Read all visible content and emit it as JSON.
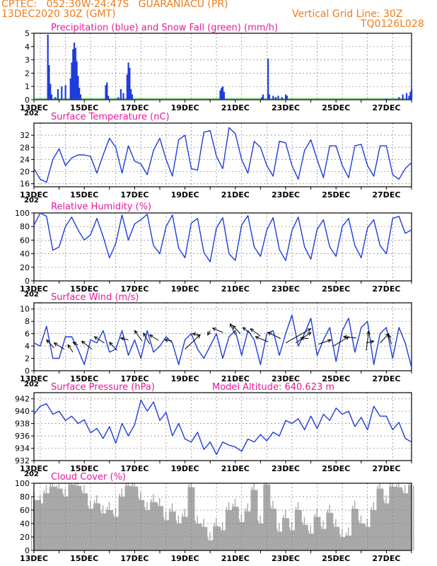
{
  "header": {
    "station_line": "CPTEC:   052:30W-24:47S   GUARANIACU (PR)",
    "date_line": "13DEC2020 30Z (GMT)",
    "grid_label": "Vertical Grid Line: 30Z",
    "code": "TQ0126L028"
  },
  "colors": {
    "header": "#ee7c1d",
    "title": "#e8189b",
    "series": "#1f3ddc",
    "snow": "#1aa21a",
    "cloud": "#a8a8a8",
    "axis": "#000000",
    "grid": "#808080"
  },
  "chart_data": [
    {
      "id": "precip",
      "type": "bar",
      "title": "Precipitation (blue) and Snow Fall (green) (mm/h)",
      "ylim": [
        0,
        5
      ],
      "yticks": [
        "0",
        "1",
        "2",
        "3",
        "4",
        "5"
      ],
      "xticks": [
        "13DEC",
        "15DEC",
        "17DEC",
        "19DEC",
        "21DEC",
        "23DEC",
        "25DEC",
        "27DEC"
      ],
      "x_overlap_label": "202",
      "precip_bars": [
        [
          13.55,
          4.9
        ],
        [
          13.6,
          2.6
        ],
        [
          13.65,
          1.2
        ],
        [
          13.7,
          0.4
        ],
        [
          13.85,
          0.2
        ],
        [
          13.95,
          0.8
        ],
        [
          14.1,
          1.0
        ],
        [
          14.25,
          1.1
        ],
        [
          14.45,
          1.6
        ],
        [
          14.5,
          2.8
        ],
        [
          14.55,
          3.8
        ],
        [
          14.6,
          4.3
        ],
        [
          14.65,
          3.9
        ],
        [
          14.7,
          2.9
        ],
        [
          14.75,
          1.8
        ],
        [
          14.8,
          0.9
        ],
        [
          14.85,
          0.4
        ],
        [
          15.85,
          1.1
        ],
        [
          15.9,
          1.3
        ],
        [
          15.95,
          0.3
        ],
        [
          16.35,
          0.2
        ],
        [
          16.45,
          0.8
        ],
        [
          16.55,
          0.5
        ],
        [
          16.7,
          1.9
        ],
        [
          16.75,
          2.8
        ],
        [
          16.8,
          2.4
        ],
        [
          16.85,
          0.8
        ],
        [
          16.9,
          0.4
        ],
        [
          20.4,
          0.7
        ],
        [
          20.45,
          0.9
        ],
        [
          20.5,
          1.0
        ],
        [
          20.55,
          0.6
        ],
        [
          22.05,
          0.2
        ],
        [
          22.1,
          0.4
        ],
        [
          22.3,
          3.1
        ],
        [
          22.35,
          0.4
        ],
        [
          22.5,
          0.3
        ],
        [
          22.6,
          0.2
        ],
        [
          22.7,
          0.3
        ],
        [
          22.85,
          0.2
        ],
        [
          23.0,
          0.4
        ],
        [
          23.05,
          0.3
        ],
        [
          27.0,
          0.1
        ],
        [
          27.5,
          0.2
        ],
        [
          27.65,
          0.4
        ],
        [
          27.8,
          0.5
        ],
        [
          27.9,
          0.3
        ],
        [
          27.95,
          0.6
        ],
        [
          28.0,
          0.8
        ]
      ],
      "snow_line": 0.05
    },
    {
      "id": "temp",
      "type": "line",
      "title": "Surface Temperature (nC)",
      "ylim": [
        15,
        36
      ],
      "yticks": [
        "16",
        "20",
        "24",
        "28",
        "32"
      ],
      "xticks": [
        "13DEC",
        "15DEC",
        "17DEC",
        "19DEC",
        "21DEC",
        "23DEC",
        "25DEC",
        "27DEC"
      ],
      "x_overlap_label": "202",
      "x": [
        13.0,
        13.25,
        13.5,
        13.75,
        14.0,
        14.25,
        14.5,
        14.75,
        15.0,
        15.25,
        15.5,
        15.75,
        16.0,
        16.25,
        16.5,
        16.75,
        17.0,
        17.25,
        17.5,
        17.75,
        18.0,
        18.25,
        18.5,
        18.75,
        19.0,
        19.25,
        19.5,
        19.75,
        20.0,
        20.25,
        20.5,
        20.75,
        21.0,
        21.25,
        21.5,
        21.75,
        22.0,
        22.25,
        22.5,
        22.75,
        23.0,
        23.25,
        23.5,
        23.75,
        24.0,
        24.25,
        24.5,
        24.75,
        25.0,
        25.25,
        25.5,
        25.75,
        26.0,
        26.25,
        26.5,
        26.75,
        27.0,
        27.25,
        27.5,
        27.75,
        28.0
      ],
      "values": [
        21,
        17.5,
        16.5,
        24,
        27.5,
        22,
        24.5,
        25.5,
        25.5,
        25,
        19.5,
        25.5,
        31,
        28,
        19.5,
        28.5,
        23.5,
        22.5,
        19,
        27,
        31,
        24,
        18.5,
        30.5,
        32,
        21,
        20.5,
        33,
        33.5,
        25,
        21,
        34.5,
        32.5,
        24,
        19.5,
        30,
        28,
        22,
        18.5,
        30,
        29.5,
        22,
        17.5,
        27,
        30.5,
        24,
        18,
        28.5,
        28.5,
        22,
        18,
        28.5,
        29,
        22,
        18.5,
        28.5,
        28.5,
        19,
        17.5,
        21,
        23
      ]
    },
    {
      "id": "rh",
      "type": "line",
      "title": "Relative Humidity (%)",
      "ylim": [
        0,
        100
      ],
      "yticks": [
        "0",
        "20",
        "40",
        "60",
        "80",
        "100"
      ],
      "xticks": [
        "13DEC",
        "15DEC",
        "17DEC",
        "19DEC",
        "21DEC",
        "23DEC",
        "25DEC",
        "27DEC"
      ],
      "x_overlap_label": "202",
      "x": [
        13.0,
        13.25,
        13.5,
        13.75,
        14.0,
        14.25,
        14.5,
        14.75,
        15.0,
        15.25,
        15.5,
        15.75,
        16.0,
        16.25,
        16.5,
        16.75,
        17.0,
        17.25,
        17.5,
        17.75,
        18.0,
        18.25,
        18.5,
        18.75,
        19.0,
        19.25,
        19.5,
        19.75,
        20.0,
        20.25,
        20.5,
        20.75,
        21.0,
        21.25,
        21.5,
        21.75,
        22.0,
        22.25,
        22.5,
        22.75,
        23.0,
        23.25,
        23.5,
        23.75,
        24.0,
        24.25,
        24.5,
        24.75,
        25.0,
        25.25,
        25.5,
        25.75,
        26.0,
        26.25,
        26.5,
        26.75,
        27.0,
        27.25,
        27.5,
        27.75,
        28.0
      ],
      "values": [
        82,
        100,
        95,
        45,
        50,
        80,
        94,
        75,
        60,
        68,
        92,
        65,
        34,
        55,
        97,
        60,
        84,
        90,
        98,
        52,
        40,
        80,
        97,
        48,
        34,
        85,
        92,
        42,
        28,
        78,
        93,
        40,
        30,
        82,
        96,
        50,
        36,
        75,
        93,
        46,
        30,
        74,
        94,
        50,
        32,
        76,
        90,
        50,
        36,
        80,
        92,
        52,
        34,
        78,
        90,
        52,
        40,
        92,
        95,
        70,
        75
      ]
    },
    {
      "id": "wind",
      "type": "line",
      "title": "Surface Wind (m/s)",
      "ylim": [
        0,
        11
      ],
      "yticks": [
        "0",
        "2",
        "4",
        "6",
        "8",
        "10"
      ],
      "xticks": [
        "13DEC",
        "15DEC",
        "17DEC",
        "19DEC",
        "21DEC",
        "23DEC",
        "25DEC",
        "27DEC"
      ],
      "x_overlap_label": "202",
      "x": [
        13.0,
        13.25,
        13.5,
        13.75,
        14.0,
        14.25,
        14.5,
        14.75,
        15.0,
        15.25,
        15.5,
        15.75,
        16.0,
        16.25,
        16.5,
        16.75,
        17.0,
        17.25,
        17.5,
        17.75,
        18.0,
        18.25,
        18.5,
        18.75,
        19.0,
        19.25,
        19.5,
        19.75,
        20.0,
        20.25,
        20.5,
        20.75,
        21.0,
        21.25,
        21.5,
        21.75,
        22.0,
        22.25,
        22.5,
        22.75,
        23.0,
        23.25,
        23.5,
        23.75,
        24.0,
        24.25,
        24.5,
        24.75,
        25.0,
        25.25,
        25.5,
        25.75,
        26.0,
        26.25,
        26.5,
        26.75,
        27.0,
        27.25,
        27.5,
        27.75,
        28.0
      ],
      "values": [
        4.5,
        4,
        7.2,
        2,
        2,
        5.5,
        5.5,
        3.5,
        1,
        5,
        4.5,
        6.5,
        3,
        3.5,
        6.5,
        2.5,
        5,
        2,
        6.5,
        3,
        4,
        5.5,
        4.5,
        1,
        5,
        6,
        3.5,
        2,
        4,
        6,
        2,
        5.5,
        6.5,
        2.5,
        6.5,
        5,
        1,
        6,
        6.5,
        2.5,
        6,
        9,
        4,
        6,
        8.5,
        2.5,
        5,
        7,
        1.5,
        6.5,
        8.5,
        3,
        7,
        8,
        1,
        6,
        7,
        2,
        7,
        4.5,
        0.5
      ],
      "arrows": [
        [
          13.8,
          3.7,
          13.5,
          5
        ],
        [
          14.2,
          3.5,
          13.8,
          4.5
        ],
        [
          14.55,
          3.0,
          14.35,
          4.2
        ],
        [
          14.75,
          4.2,
          14.55,
          4.6
        ],
        [
          15.3,
          3.5,
          14.9,
          4.8
        ],
        [
          15.8,
          4.5,
          15.4,
          5.5
        ],
        [
          16.3,
          3.3,
          16.0,
          4.6
        ],
        [
          16.75,
          5.0,
          16.45,
          5.3
        ],
        [
          17.3,
          4.8,
          17.0,
          6.5
        ],
        [
          17.6,
          4.3,
          17.35,
          6.1
        ],
        [
          17.95,
          4.9,
          17.6,
          5.8
        ],
        [
          18.5,
          4.8,
          18.2,
          5.0
        ],
        [
          19.0,
          3.5,
          19.6,
          5.8
        ],
        [
          19.6,
          5.8,
          19.3,
          6.0
        ],
        [
          20.0,
          6.5,
          19.9,
          5.8
        ],
        [
          20.5,
          6.2,
          20.1,
          6.9
        ],
        [
          21.0,
          5.8,
          20.8,
          7.6
        ],
        [
          21.2,
          6.0,
          20.9,
          7.3
        ],
        [
          21.6,
          6.0,
          21.3,
          7.0
        ],
        [
          22.0,
          5.6,
          21.6,
          6.8
        ],
        [
          22.3,
          4.7,
          21.8,
          5.5
        ],
        [
          22.8,
          5.2,
          22.3,
          6.2
        ],
        [
          23.0,
          4.5,
          24.0,
          6.8
        ],
        [
          23.4,
          4.5,
          24.0,
          6.2
        ],
        [
          23.9,
          5.2,
          23.6,
          5.3
        ],
        [
          24.3,
          4.3,
          24.8,
          5.0
        ],
        [
          24.9,
          4.0,
          25.5,
          5.5
        ],
        [
          25.8,
          5.3,
          25.3,
          5.5
        ],
        [
          26.2,
          3.3,
          26.3,
          6.4
        ],
        [
          26.2,
          4.5,
          26.5,
          4.8
        ],
        [
          26.75,
          4.5,
          27.1,
          6.0
        ],
        [
          27.2,
          4.3,
          27.1,
          5.8
        ]
      ]
    },
    {
      "id": "pressure",
      "type": "line",
      "title": "Surface Pressure (hPa)",
      "model_altitude": "Model Altitude: 640.623 m",
      "ylim": [
        932,
        943
      ],
      "yticks": [
        "932",
        "934",
        "936",
        "938",
        "940",
        "942"
      ],
      "xticks": [
        "13DEC",
        "15DEC",
        "17DEC",
        "19DEC",
        "21DEC",
        "23DEC",
        "25DEC",
        "27DEC"
      ],
      "x_overlap_label": "202",
      "x": [
        13.0,
        13.25,
        13.5,
        13.75,
        14.0,
        14.25,
        14.5,
        14.75,
        15.0,
        15.25,
        15.5,
        15.75,
        16.0,
        16.25,
        16.5,
        16.75,
        17.0,
        17.25,
        17.5,
        17.75,
        18.0,
        18.25,
        18.5,
        18.75,
        19.0,
        19.25,
        19.5,
        19.75,
        20.0,
        20.25,
        20.5,
        20.75,
        21.0,
        21.25,
        21.5,
        21.75,
        22.0,
        22.25,
        22.5,
        22.75,
        23.0,
        23.25,
        23.5,
        23.75,
        24.0,
        24.25,
        24.5,
        24.75,
        25.0,
        25.25,
        25.5,
        25.75,
        26.0,
        26.25,
        26.5,
        26.75,
        27.0,
        27.25,
        27.5,
        27.75,
        28.0
      ],
      "values": [
        939.5,
        940.8,
        941.2,
        939.5,
        940,
        938.5,
        939.2,
        938,
        938.6,
        936.5,
        937.2,
        935.6,
        937.5,
        934.8,
        938,
        936,
        937.8,
        941.8,
        940,
        941.5,
        938.5,
        939.8,
        936,
        938,
        935.5,
        935,
        936.6,
        933.8,
        935,
        933,
        935,
        934.5,
        934.2,
        933.5,
        935.5,
        935,
        936.2,
        935.2,
        936.6,
        936,
        938.5,
        938,
        938.8,
        937,
        939.2,
        937.2,
        939.5,
        938.5,
        940.5,
        939.5,
        940,
        937.5,
        939,
        937,
        940.8,
        939.2,
        939.2,
        937,
        938.2,
        935.6,
        935
      ]
    },
    {
      "id": "cloud",
      "type": "bar",
      "title": "Cloud Cover (%)",
      "ylim": [
        0,
        100
      ],
      "yticks": [
        "0",
        "20",
        "40",
        "60",
        "80",
        "100"
      ],
      "xticks": [
        "13DEC",
        "15DEC",
        "17DEC",
        "19DEC",
        "21DEC",
        "23DEC",
        "25DEC",
        "27DEC"
      ],
      "x": [
        13.0,
        13.25,
        13.5,
        13.75,
        14.0,
        14.25,
        14.5,
        14.75,
        15.0,
        15.25,
        15.5,
        15.75,
        16.0,
        16.25,
        16.5,
        16.75,
        17.0,
        17.25,
        17.5,
        17.75,
        18.0,
        18.25,
        18.5,
        18.75,
        19.0,
        19.25,
        19.5,
        19.75,
        20.0,
        20.25,
        20.5,
        20.75,
        21.0,
        21.25,
        21.5,
        21.75,
        22.0,
        22.25,
        22.5,
        22.75,
        23.0,
        23.25,
        23.5,
        23.75,
        24.0,
        24.25,
        24.5,
        24.75,
        25.0,
        25.25,
        25.5,
        25.75,
        26.0,
        26.25,
        26.5,
        26.75,
        27.0,
        27.25,
        27.5,
        27.75,
        28.0
      ],
      "values": [
        75,
        70,
        85,
        95,
        92,
        80,
        98,
        96,
        85,
        62,
        70,
        55,
        60,
        50,
        80,
        96,
        95,
        75,
        60,
        72,
        66,
        45,
        58,
        40,
        50,
        94,
        40,
        35,
        15,
        36,
        30,
        60,
        65,
        42,
        58,
        90,
        40,
        98,
        62,
        28,
        48,
        30,
        60,
        38,
        25,
        50,
        32,
        56,
        35,
        20,
        22,
        62,
        40,
        35,
        60,
        92,
        70,
        95,
        94,
        85,
        97
      ]
    }
  ],
  "layout_x": {
    "xmin": 13,
    "xmax": 28
  }
}
